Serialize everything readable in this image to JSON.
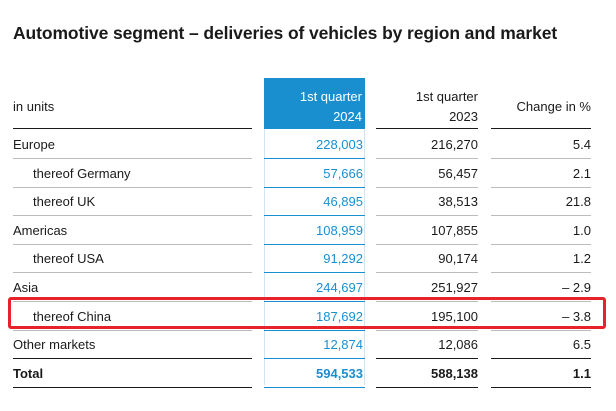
{
  "title": "Automotive segment – deliveries of vehicles by region and market",
  "unit_label": "in units",
  "columns": {
    "current_line1": "1st quarter",
    "current_line2": "2024",
    "prior_line1": "1st quarter",
    "prior_line2": "2023",
    "change": "Change in %"
  },
  "rows": [
    {
      "label": "Europe",
      "q1_2024": "228,003",
      "q1_2023": "216,270",
      "change": "5.4"
    },
    {
      "label": "thereof Germany",
      "q1_2024": "57,666",
      "q1_2023": "56,457",
      "change": "2.1"
    },
    {
      "label": "thereof UK",
      "q1_2024": "46,895",
      "q1_2023": "38,513",
      "change": "21.8"
    },
    {
      "label": "Americas",
      "q1_2024": "108,959",
      "q1_2023": "107,855",
      "change": "1.0"
    },
    {
      "label": "thereof USA",
      "q1_2024": "91,292",
      "q1_2023": "90,174",
      "change": "1.2"
    },
    {
      "label": "Asia",
      "q1_2024": "244,697",
      "q1_2023": "251,927",
      "change": "– 2.9"
    },
    {
      "label": "thereof China",
      "q1_2024": "187,692",
      "q1_2023": "195,100",
      "change": "– 3.8"
    },
    {
      "label": "Other markets",
      "q1_2024": "12,874",
      "q1_2023": "12,086",
      "change": "6.5"
    },
    {
      "label": "Total",
      "q1_2024": "594,533",
      "q1_2023": "588,138",
      "change": "1.1"
    }
  ],
  "colors": {
    "accent_blue": "#1a8fd0",
    "highlight_red": "#e8222a"
  }
}
